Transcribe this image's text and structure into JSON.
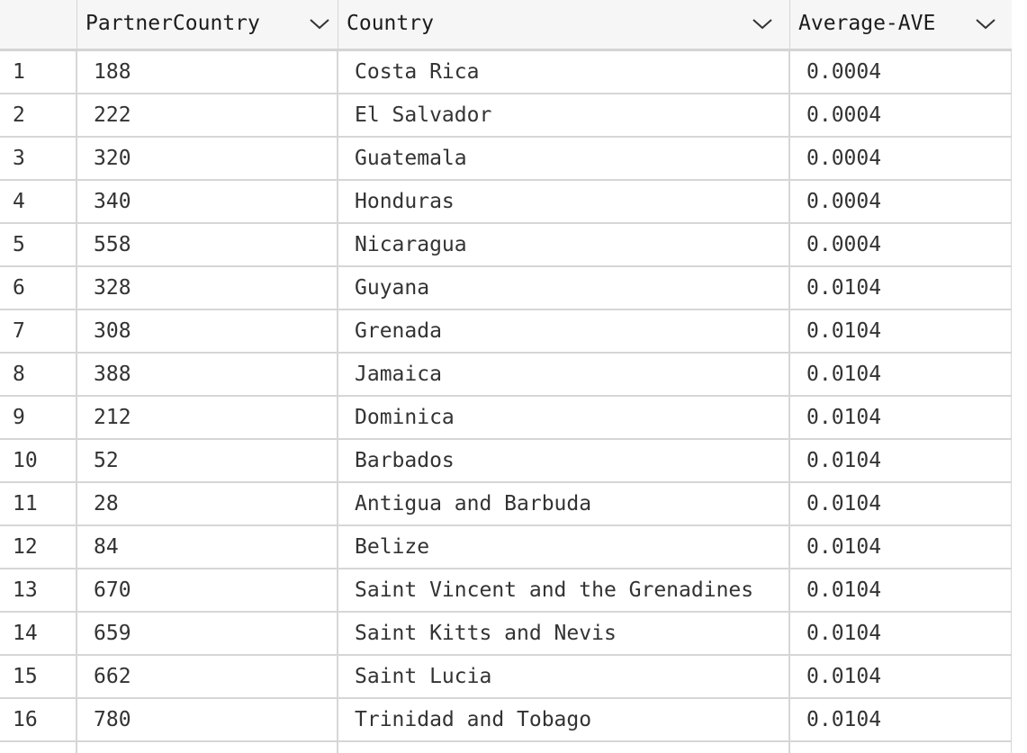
{
  "table": {
    "columns": [
      {
        "label": "",
        "icon": null
      },
      {
        "label": "PartnerCountry",
        "icon": "chevron-down-icon"
      },
      {
        "label": "Country",
        "icon": "chevron-down-icon"
      },
      {
        "label": "Average-AVE",
        "icon": "chevron-down-icon"
      }
    ],
    "rows": [
      {
        "index": "1",
        "partner": "188",
        "country": "Costa Rica",
        "ave": "0.0004"
      },
      {
        "index": "2",
        "partner": "222",
        "country": "El Salvador",
        "ave": "0.0004"
      },
      {
        "index": "3",
        "partner": "320",
        "country": "Guatemala",
        "ave": "0.0004"
      },
      {
        "index": "4",
        "partner": "340",
        "country": "Honduras",
        "ave": "0.0004"
      },
      {
        "index": "5",
        "partner": "558",
        "country": "Nicaragua",
        "ave": "0.0004"
      },
      {
        "index": "6",
        "partner": "328",
        "country": "Guyana",
        "ave": "0.0104"
      },
      {
        "index": "7",
        "partner": "308",
        "country": "Grenada",
        "ave": "0.0104"
      },
      {
        "index": "8",
        "partner": "388",
        "country": "Jamaica",
        "ave": "0.0104"
      },
      {
        "index": "9",
        "partner": "212",
        "country": "Dominica",
        "ave": "0.0104"
      },
      {
        "index": "10",
        "partner": "52",
        "country": "Barbados",
        "ave": "0.0104"
      },
      {
        "index": "11",
        "partner": "28",
        "country": "Antigua and Barbuda",
        "ave": "0.0104"
      },
      {
        "index": "12",
        "partner": "84",
        "country": "Belize",
        "ave": "0.0104"
      },
      {
        "index": "13",
        "partner": "670",
        "country": "Saint Vincent and the Grenadines",
        "ave": "0.0104"
      },
      {
        "index": "14",
        "partner": "659",
        "country": "Saint Kitts and Nevis",
        "ave": "0.0104"
      },
      {
        "index": "15",
        "partner": "662",
        "country": "Saint Lucia",
        "ave": "0.0104"
      },
      {
        "index": "16",
        "partner": "780",
        "country": "Trinidad and Tobago",
        "ave": "0.0104"
      }
    ]
  },
  "colors": {
    "header_background": "#f6f6f6",
    "grid_line": "#d6d6d6",
    "text": "#333333"
  }
}
